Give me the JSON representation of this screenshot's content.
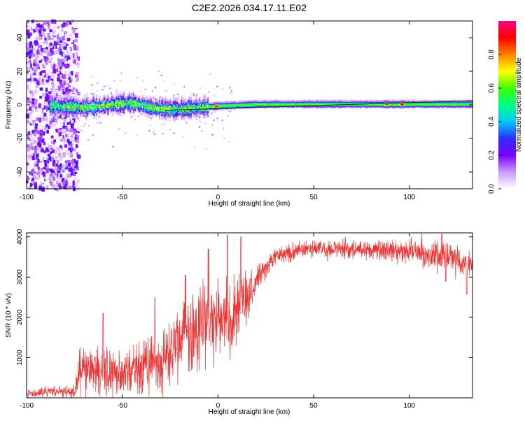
{
  "page_title": "C2E2.2026.034.17.11.E02",
  "chart_data": [
    {
      "id": "spectrogram",
      "type": "heatmap",
      "xlabel": "Height of straight line (km)",
      "ylabel": "Frequency (Hz)",
      "xlim": [
        -100,
        133
      ],
      "ylim": [
        -50,
        50
      ],
      "xticks": [
        -100,
        -50,
        0,
        50,
        100
      ],
      "yticks": [
        -40,
        -20,
        0,
        20,
        40
      ],
      "colorbar": {
        "label": "Normalized spectral amplitude",
        "range": [
          0,
          1
        ],
        "ticks": [
          0.0,
          0.2,
          0.4,
          0.6,
          0.8
        ],
        "tick_labels": [
          "0.0",
          "0.2",
          "0.4",
          "0.6",
          "0.8"
        ],
        "colormap": [
          "#ffffff",
          "#cc99ff",
          "#7a00ff",
          "#2d2dff",
          "#00c8ff",
          "#00ff80",
          "#40ff00",
          "#ffff00",
          "#ff8000",
          "#ff0000",
          "#ff0080"
        ]
      },
      "ridge": [
        {
          "x": -86,
          "f": 0
        },
        {
          "x": -70,
          "f": -1
        },
        {
          "x": -55,
          "f": 1
        },
        {
          "x": -45,
          "f": 2
        },
        {
          "x": -35,
          "f": -1
        },
        {
          "x": -25,
          "f": -2
        },
        {
          "x": -10,
          "f": -1
        },
        {
          "x": 0,
          "f": 0
        },
        {
          "x": 20,
          "f": 1
        },
        {
          "x": 60,
          "f": 1
        },
        {
          "x": 100,
          "f": 1
        },
        {
          "x": 133,
          "f": 1
        }
      ],
      "peaks": [
        {
          "x": -16,
          "f": -1.5,
          "amp": 0.95
        },
        {
          "x": -1,
          "f": 0,
          "amp": 0.98
        },
        {
          "x": 88,
          "f": 1,
          "amp": 0.9
        },
        {
          "x": 96,
          "f": 1,
          "amp": 0.96
        }
      ],
      "noise_region": {
        "x_from": -100,
        "x_to": -73
      }
    },
    {
      "id": "snr",
      "type": "line",
      "xlabel": "Height of straight line (km)",
      "ylabel": "SNR (10 * v/v)",
      "xlim": [
        -100,
        133
      ],
      "ylim": [
        0,
        4100
      ],
      "xticks": [
        -100,
        -50,
        0,
        50,
        100
      ],
      "yticks": [
        1000,
        2000,
        3000,
        4000
      ],
      "color": "#ee3333",
      "envelope": [
        {
          "x": -100,
          "base": 120,
          "amp": 90
        },
        {
          "x": -75,
          "base": 160,
          "amp": 150
        },
        {
          "x": -72,
          "base": 700,
          "amp": 500
        },
        {
          "x": -50,
          "base": 650,
          "amp": 550
        },
        {
          "x": -30,
          "base": 900,
          "amp": 700
        },
        {
          "x": -20,
          "base": 1500,
          "amp": 700
        },
        {
          "x": -10,
          "base": 1900,
          "amp": 900
        },
        {
          "x": 5,
          "base": 1900,
          "amp": 1000
        },
        {
          "x": 13,
          "base": 2300,
          "amp": 700
        },
        {
          "x": 20,
          "base": 2900,
          "amp": 300
        },
        {
          "x": 30,
          "base": 3550,
          "amp": 200
        },
        {
          "x": 50,
          "base": 3700,
          "amp": 200
        },
        {
          "x": 100,
          "base": 3650,
          "amp": 250
        },
        {
          "x": 120,
          "base": 3500,
          "amp": 350
        },
        {
          "x": 133,
          "base": 3300,
          "amp": 300
        }
      ],
      "spikes": [
        {
          "x": -60,
          "y": 2100
        },
        {
          "x": -33,
          "y": 2500
        },
        {
          "x": -17,
          "y": 3050
        },
        {
          "x": -5,
          "y": 3700
        },
        {
          "x": 5,
          "y": 4050
        },
        {
          "x": 12,
          "y": 4000
        },
        {
          "x": 117,
          "y": 4080
        },
        {
          "x": 119,
          "y": 2900
        },
        {
          "x": 130,
          "y": 2580
        }
      ]
    }
  ]
}
